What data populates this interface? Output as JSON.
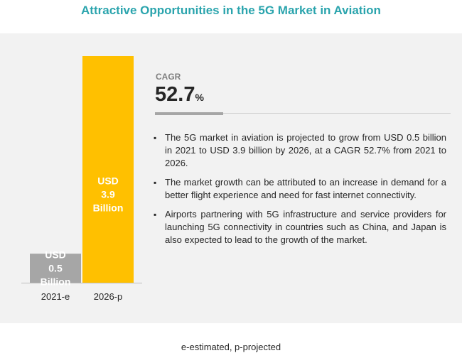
{
  "title": "Attractive Opportunities in the 5G Market in Aviation",
  "cagr": {
    "label": "CAGR",
    "value": "52.7",
    "unit": "%"
  },
  "bullets": [
    "The 5G market in aviation is projected to grow from USD 0.5 billion in 2021 to USD 3.9 billion by 2026, at a CAGR 52.7% from 2021 to 2026.",
    "The market growth can be attributed to an increase in demand for a better flight experience and need for fast internet connectivity.",
    "Airports partnering with 5G infrastructure and service providers for launching 5G connectivity in countries such as China, and Japan is also expected to lead to the growth of the market."
  ],
  "footnote": "e-estimated, p-projected",
  "colors": {
    "title": "#2aa4ad",
    "bar_2021": "#a6a6a6",
    "bar_2026": "#ffc000",
    "panel": "#f2f2f2"
  },
  "chart_data": {
    "type": "bar",
    "categories": [
      "2021-e",
      "2026-p"
    ],
    "values": [
      0.5,
      3.9
    ],
    "bar_labels": [
      [
        "USD",
        "0.5",
        "Billion"
      ],
      [
        "USD",
        "3.9",
        "Billion"
      ]
    ],
    "colors": [
      "#a6a6a6",
      "#ffc000"
    ],
    "ylim": [
      0,
      3.9
    ],
    "grid": false
  }
}
